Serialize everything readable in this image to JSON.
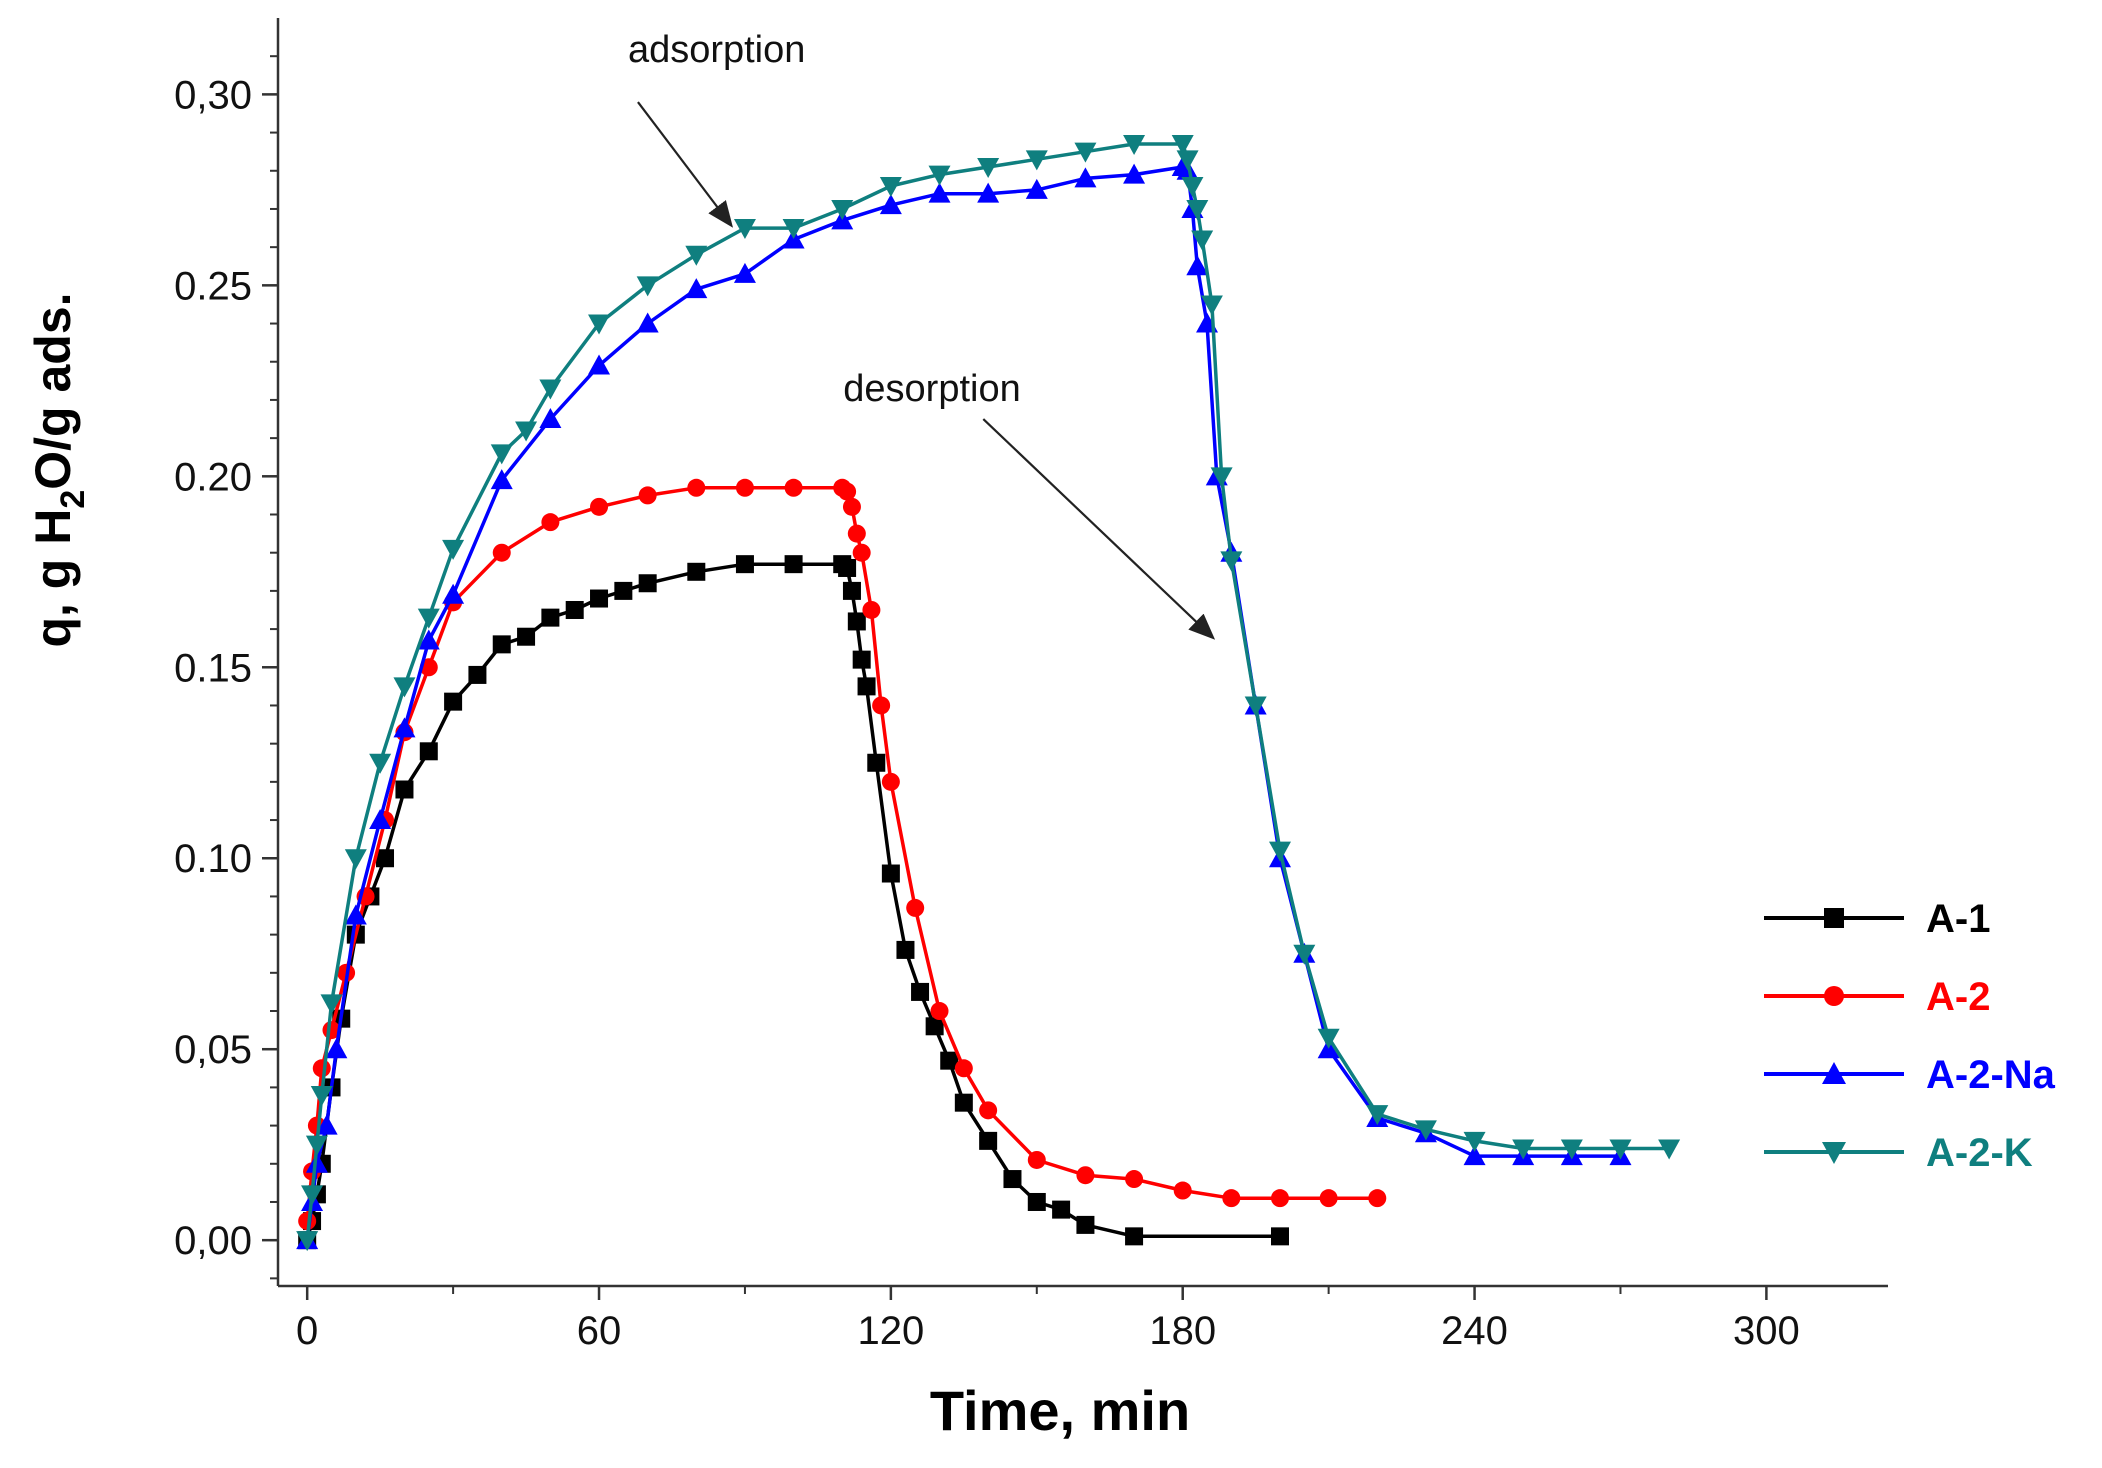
{
  "chart_data": {
    "type": "line",
    "title": "",
    "xlabel": "Time, min",
    "ylabel": {
      "prefix": "q, g H",
      "subscript": "2",
      "suffix": "O/g ads."
    },
    "xlim": [
      -6,
      325
    ],
    "ylim": [
      -0.012,
      0.32
    ],
    "xticks": [
      0,
      60,
      120,
      180,
      240,
      300
    ],
    "xtick_labels": [
      "0",
      "60",
      "120",
      "180",
      "240",
      "300"
    ],
    "yticks": [
      0.0,
      0.05,
      0.1,
      0.15,
      0.2,
      0.25,
      0.3
    ],
    "ytick_labels": [
      "0,00",
      "0,05",
      "0.10",
      "0.15",
      "0.20",
      "0.25",
      "0,30"
    ],
    "grid": false,
    "legend_position": "right",
    "annotations": [
      {
        "text": "adsorption",
        "arrow_from": [
          68,
          0.298
        ],
        "arrow_to": [
          87,
          0.266
        ]
      },
      {
        "text": "desorption",
        "arrow_from": [
          139,
          0.215
        ],
        "arrow_to": [
          186,
          0.158
        ]
      }
    ],
    "series": [
      {
        "name": "A-1",
        "color": "#000000",
        "marker": "square",
        "x": [
          0,
          1,
          2,
          3,
          5,
          7,
          10,
          13,
          16,
          20,
          25,
          30,
          35,
          40,
          45,
          50,
          55,
          60,
          65,
          70,
          80,
          90,
          100,
          110,
          111,
          112,
          113,
          114,
          115,
          117,
          120,
          123,
          126,
          129,
          132,
          135,
          140,
          145,
          150,
          155,
          160,
          170,
          200
        ],
        "y": [
          0.0,
          0.005,
          0.012,
          0.02,
          0.04,
          0.058,
          0.08,
          0.09,
          0.1,
          0.118,
          0.128,
          0.141,
          0.148,
          0.156,
          0.158,
          0.163,
          0.165,
          0.168,
          0.17,
          0.172,
          0.175,
          0.177,
          0.177,
          0.177,
          0.176,
          0.17,
          0.162,
          0.152,
          0.145,
          0.125,
          0.096,
          0.076,
          0.065,
          0.056,
          0.047,
          0.036,
          0.026,
          0.016,
          0.01,
          0.008,
          0.004,
          0.001,
          0.001
        ]
      },
      {
        "name": "A-2",
        "color": "#ff0000",
        "marker": "circle",
        "x": [
          0,
          1,
          2,
          3,
          5,
          8,
          12,
          16,
          20,
          25,
          30,
          40,
          50,
          60,
          70,
          80,
          90,
          100,
          110,
          111,
          112,
          113,
          114,
          116,
          118,
          120,
          125,
          130,
          135,
          140,
          150,
          160,
          170,
          180,
          190,
          200,
          210,
          220
        ],
        "y": [
          0.005,
          0.018,
          0.03,
          0.045,
          0.055,
          0.07,
          0.09,
          0.11,
          0.133,
          0.15,
          0.167,
          0.18,
          0.188,
          0.192,
          0.195,
          0.197,
          0.197,
          0.197,
          0.197,
          0.196,
          0.192,
          0.185,
          0.18,
          0.165,
          0.14,
          0.12,
          0.087,
          0.06,
          0.045,
          0.034,
          0.021,
          0.017,
          0.016,
          0.013,
          0.011,
          0.011,
          0.011,
          0.011
        ]
      },
      {
        "name": "A-2-Na",
        "color": "#0000ff",
        "marker": "triangle-up",
        "x": [
          0,
          1,
          2,
          4,
          6,
          10,
          15,
          20,
          25,
          30,
          40,
          50,
          60,
          70,
          80,
          90,
          100,
          110,
          120,
          130,
          140,
          150,
          160,
          170,
          180,
          181,
          182,
          183,
          185,
          187,
          190,
          195,
          200,
          205,
          210,
          220,
          230,
          240,
          250,
          260,
          270
        ],
        "y": [
          0.0,
          0.01,
          0.02,
          0.03,
          0.05,
          0.085,
          0.11,
          0.134,
          0.157,
          0.169,
          0.199,
          0.215,
          0.229,
          0.24,
          0.249,
          0.253,
          0.262,
          0.267,
          0.271,
          0.274,
          0.274,
          0.275,
          0.278,
          0.279,
          0.281,
          0.28,
          0.27,
          0.255,
          0.24,
          0.2,
          0.18,
          0.14,
          0.1,
          0.075,
          0.05,
          0.032,
          0.028,
          0.022,
          0.022,
          0.022,
          0.022
        ]
      },
      {
        "name": "A-2-K",
        "color": "#0f7f7f",
        "marker": "triangle-down",
        "x": [
          0,
          1,
          2,
          3,
          5,
          10,
          15,
          20,
          25,
          30,
          40,
          45,
          50,
          60,
          70,
          80,
          90,
          100,
          110,
          120,
          130,
          140,
          150,
          160,
          170,
          180,
          181,
          182,
          183,
          184,
          186,
          188,
          190,
          195,
          200,
          205,
          210,
          220,
          230,
          240,
          250,
          260,
          270,
          280
        ],
        "y": [
          0.0,
          0.012,
          0.025,
          0.038,
          0.062,
          0.1,
          0.125,
          0.145,
          0.163,
          0.181,
          0.206,
          0.212,
          0.223,
          0.24,
          0.25,
          0.258,
          0.265,
          0.265,
          0.27,
          0.276,
          0.279,
          0.281,
          0.283,
          0.285,
          0.287,
          0.287,
          0.283,
          0.276,
          0.27,
          0.262,
          0.245,
          0.2,
          0.178,
          0.14,
          0.102,
          0.075,
          0.053,
          0.033,
          0.029,
          0.026,
          0.024,
          0.024,
          0.024,
          0.024
        ]
      }
    ]
  }
}
